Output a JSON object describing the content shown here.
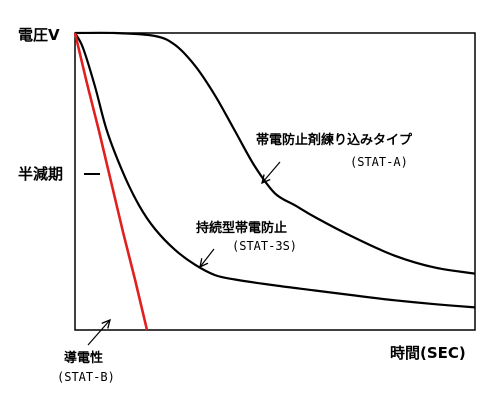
{
  "chart_data": {
    "type": "line",
    "title": "",
    "ylabel": "電圧V",
    "xlabel": "時間(SEC)",
    "y_tick_label": "半減期",
    "grid": false,
    "xlim": [
      0,
      100
    ],
    "ylim": [
      0,
      100
    ],
    "series": [
      {
        "name": "STAT-B",
        "color": "#e0201e",
        "x": [
          0,
          3,
          6,
          9,
          12,
          15,
          18
        ],
        "y": [
          100,
          83,
          67,
          50,
          33,
          17,
          0
        ]
      },
      {
        "name": "STAT-3S",
        "color": "#000000",
        "x": [
          0,
          2,
          5,
          8,
          12,
          16,
          20,
          25,
          30,
          35,
          40,
          50,
          60,
          70,
          80,
          90,
          100
        ],
        "y": [
          100,
          95,
          82,
          67,
          53,
          42,
          34,
          27,
          22,
          18.5,
          17,
          15,
          13.3,
          11.6,
          10,
          8.7,
          7.6
        ]
      },
      {
        "name": "STAT-A",
        "color": "#000000",
        "x": [
          0,
          10,
          20,
          25,
          30,
          35,
          40,
          45,
          50,
          55,
          60,
          70,
          80,
          90,
          100
        ],
        "y": [
          100,
          100,
          99,
          96,
          89,
          79,
          67,
          55,
          46,
          42,
          38,
          31,
          25,
          21,
          19
        ]
      }
    ],
    "annotations": {
      "stat_a_title": "帯電防止剤練り込みタイプ",
      "stat_a_code": "(STAT-A)",
      "stat_3s_title": "持続型帯電防止",
      "stat_3s_code": "(STAT-3S)",
      "stat_b_title": "導電性",
      "stat_b_code": "(STAT-B)"
    }
  }
}
